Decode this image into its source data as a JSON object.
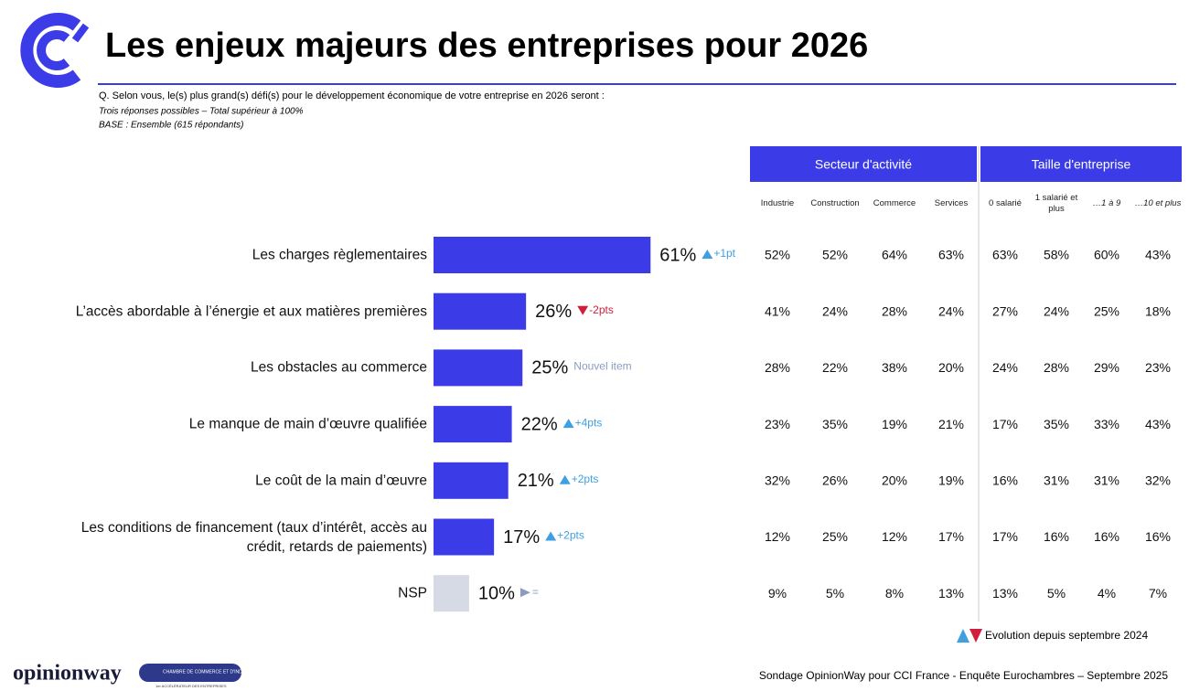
{
  "header": {
    "title": "Les enjeux majeurs des entreprises pour 2026",
    "question": "Q. Selon vous, le(s) plus grand(s) défi(s) pour le développement économique de votre entreprise en 2026 seront :",
    "note1": "Trois réponses possibles – Total supérieur à 100%",
    "note2": "BASE : Ensemble (615 répondants)"
  },
  "chart_data": {
    "type": "bar",
    "orientation": "horizontal",
    "categories": [
      "Les charges règlementaires",
      "L’accès abordable à l’énergie et aux matières premières",
      "Les obstacles au commerce",
      "Le manque de main d’œuvre qualifiée",
      "Le coût de la main d’œuvre",
      "Les conditions de financement (taux d’intérêt, accès au crédit, retards de paiements)",
      "NSP"
    ],
    "values": [
      61,
      26,
      25,
      22,
      21,
      17,
      10
    ],
    "value_labels": [
      "61%",
      "26%",
      "25%",
      "22%",
      "21%",
      "17%",
      "10%"
    ],
    "colors": [
      "#3b3be8",
      "#3b3be8",
      "#3b3be8",
      "#3b3be8",
      "#3b3be8",
      "#3b3be8",
      "#d6dae4"
    ],
    "evolution": [
      {
        "label": "+1pt",
        "direction": "up",
        "color": "#3f9fe0"
      },
      {
        "label": "-2pts",
        "direction": "down",
        "color": "#d01f3c"
      },
      {
        "label": "Nouvel item",
        "color": "#8b9bc0"
      },
      {
        "label": "+4pts",
        "direction": "up",
        "color": "#3f9fe0"
      },
      {
        "label": "+2pts",
        "direction": "up",
        "color": "#3f9fe0"
      },
      {
        "label": "+2pts",
        "direction": "up",
        "color": "#3f9fe0"
      },
      {
        "label": "=",
        "direction": "right",
        "color": "#8b9bc0"
      }
    ]
  },
  "table": {
    "groups": [
      {
        "label": "Secteur d'activité",
        "columns": [
          "Industrie",
          "Construction",
          "Commerce",
          "Services"
        ]
      },
      {
        "label": "Taille d'entreprise",
        "columns": [
          "0 salarié",
          "1 salarié et plus",
          "…1 à 9",
          "…10 et plus"
        ]
      }
    ],
    "rows": [
      [
        "52%",
        "52%",
        "64%",
        "63%",
        "63%",
        "58%",
        "60%",
        "43%"
      ],
      [
        "41%",
        "24%",
        "28%",
        "24%",
        "27%",
        "24%",
        "25%",
        "18%"
      ],
      [
        "28%",
        "22%",
        "38%",
        "20%",
        "24%",
        "28%",
        "29%",
        "23%"
      ],
      [
        "23%",
        "35%",
        "19%",
        "21%",
        "17%",
        "35%",
        "33%",
        "43%"
      ],
      [
        "32%",
        "26%",
        "20%",
        "19%",
        "16%",
        "31%",
        "31%",
        "32%"
      ],
      [
        "12%",
        "25%",
        "12%",
        "17%",
        "17%",
        "16%",
        "16%",
        "16%"
      ],
      [
        "9%",
        "5%",
        "8%",
        "13%",
        "13%",
        "5%",
        "4%",
        "7%"
      ]
    ]
  },
  "legend": "Evolution depuis septembre 2024",
  "footer": {
    "source": "Sondage OpinionWay pour CCI France - Enquête Eurochambres – Septembre 2025",
    "brand": "opinionway",
    "partner": "CHAMBRE DE COMMERCE ET D'INDUSTRIE",
    "partner_tagline": "1er ACCÉLÉRATEUR DES ENTREPRISES"
  }
}
